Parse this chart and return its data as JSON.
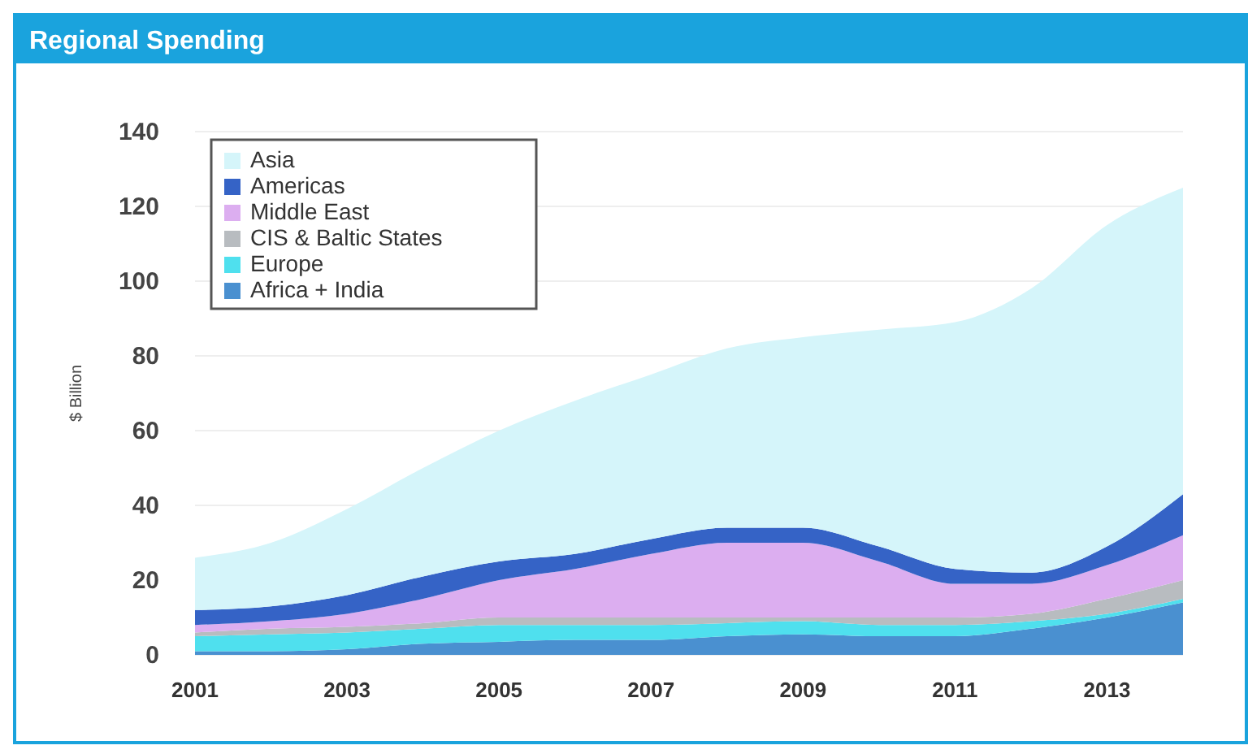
{
  "chart_data": {
    "type": "area",
    "title": "Regional Spending",
    "ylabel": "$ Billion",
    "stacked": true,
    "x": [
      2001,
      2002,
      2003,
      2004,
      2005,
      2006,
      2007,
      2008,
      2009,
      2010,
      2011,
      2012,
      2013,
      2014
    ],
    "xlim": [
      2001,
      2014
    ],
    "xticks": [
      2001,
      2003,
      2005,
      2007,
      2009,
      2011,
      2013
    ],
    "ylim": [
      0,
      140
    ],
    "yticks": [
      0,
      20,
      40,
      60,
      80,
      100,
      120,
      140
    ],
    "grid": "y",
    "legend": "top left",
    "series": [
      {
        "name": "Africa + India",
        "color": "#4a90d0",
        "values": [
          1,
          1,
          1.5,
          3,
          3.5,
          4,
          4,
          5,
          5.5,
          5,
          5,
          7,
          10,
          14
        ]
      },
      {
        "name": "Europe",
        "color": "#4fe0ee",
        "values": [
          4,
          4.5,
          4.5,
          4,
          4.5,
          4,
          4,
          3.5,
          3.5,
          3,
          3,
          2,
          1,
          1
        ]
      },
      {
        "name": "CIS & Baltic States",
        "color": "#b8bcc0",
        "values": [
          1,
          1.5,
          1.5,
          1.5,
          2,
          2,
          2,
          1.5,
          1,
          2,
          2,
          2,
          4,
          5
        ]
      },
      {
        "name": "Middle East",
        "color": "#dcaef0",
        "values": [
          2,
          2,
          3.5,
          6.5,
          10,
          13,
          17,
          20,
          20,
          15,
          9,
          8,
          9,
          12
        ]
      },
      {
        "name": "Americas",
        "color": "#3563c6",
        "values": [
          4,
          4,
          5,
          6,
          5,
          4,
          4,
          4,
          4,
          4,
          4,
          3,
          5,
          11
        ]
      },
      {
        "name": "Asia",
        "color": "#d5f5fa",
        "values": [
          14,
          17,
          23,
          29,
          35,
          41,
          44,
          48,
          51,
          58,
          66,
          76,
          86,
          82
        ]
      }
    ]
  }
}
